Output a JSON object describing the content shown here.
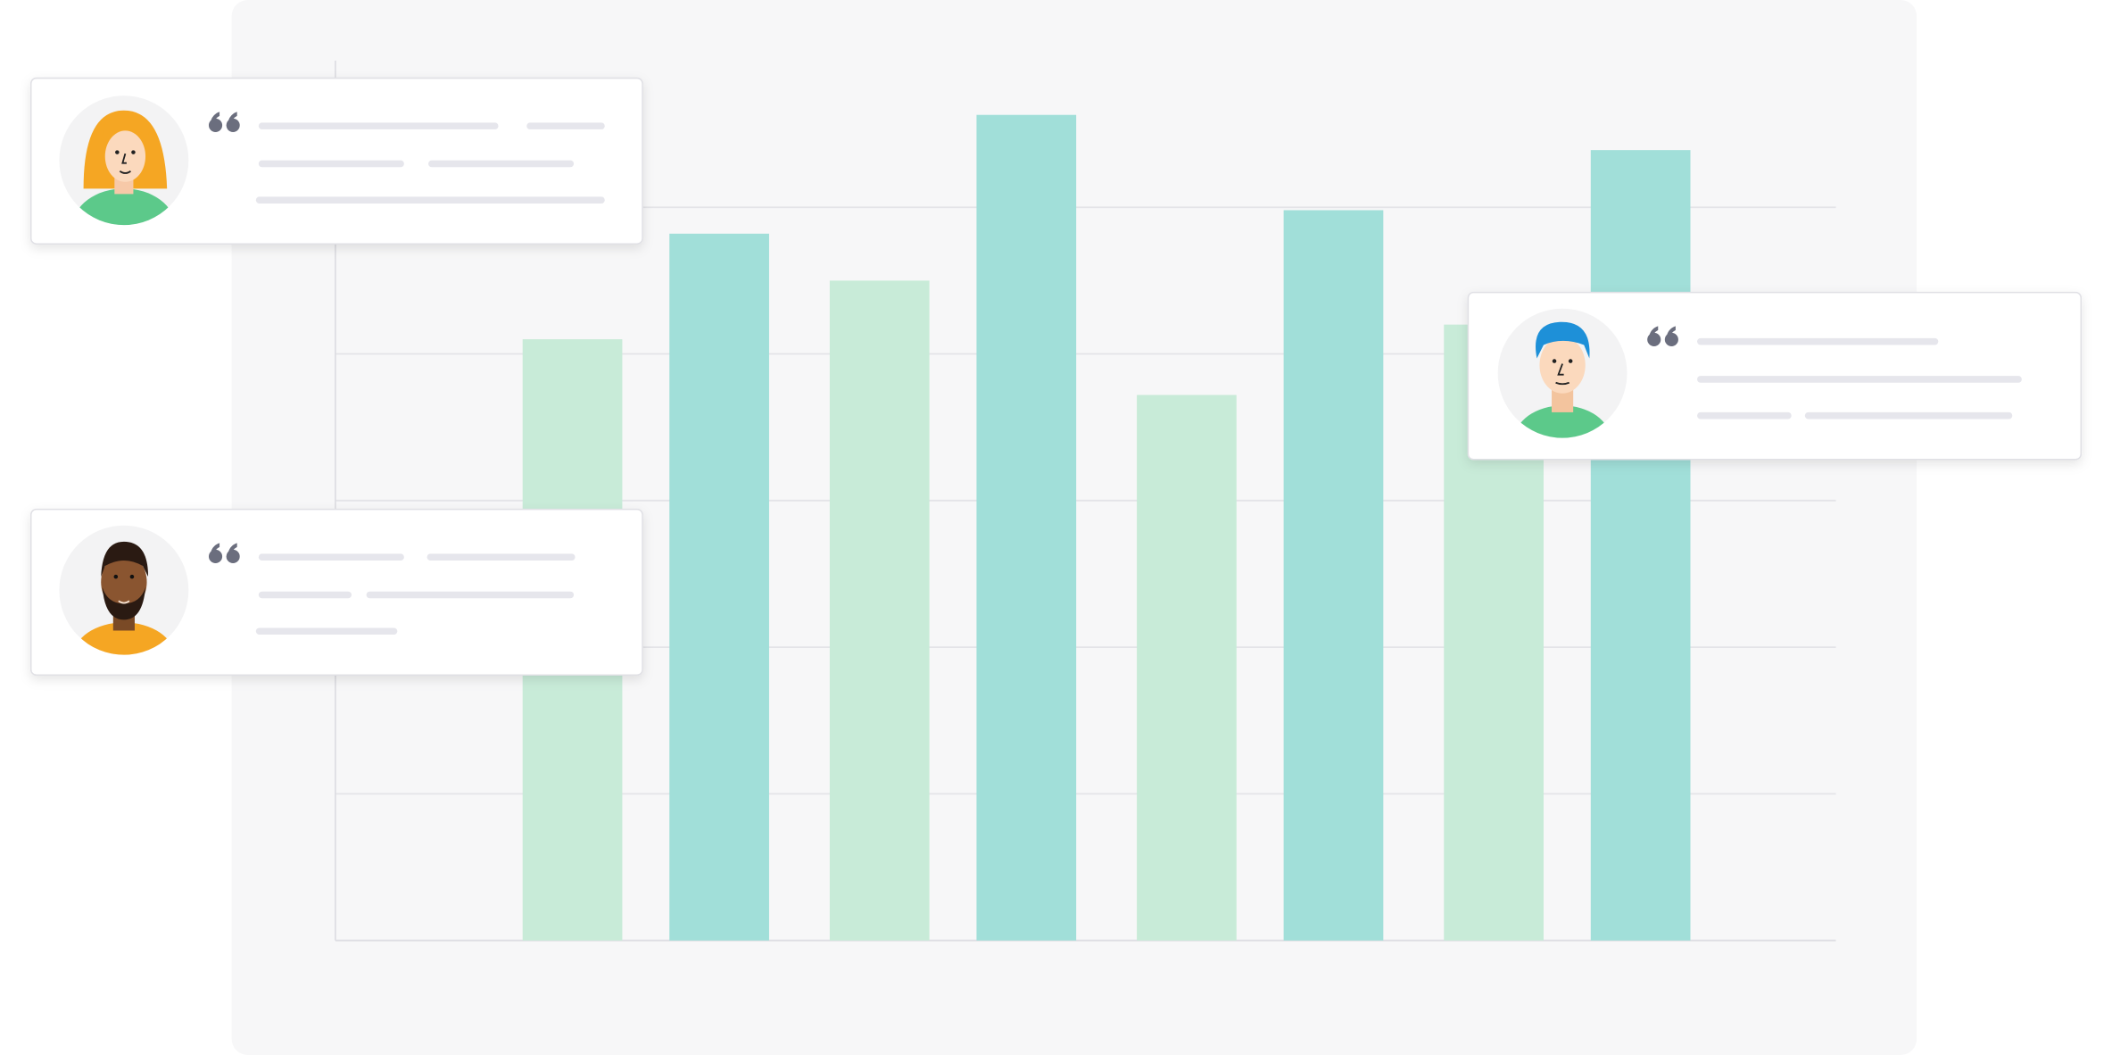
{
  "chart_data": {
    "type": "bar",
    "categories": [
      null,
      null,
      null,
      null
    ],
    "series": [
      {
        "color": "#c8ebd8",
        "values": [
          4.1,
          4.5,
          3.72,
          4.2
        ]
      },
      {
        "color": "#a1dfd9",
        "values": [
          4.82,
          5.63,
          4.98,
          5.39
        ]
      }
    ],
    "ylim": [
      0,
      6
    ],
    "yticks": [
      1,
      2,
      3,
      4,
      5
    ],
    "grid": true
  }
}
